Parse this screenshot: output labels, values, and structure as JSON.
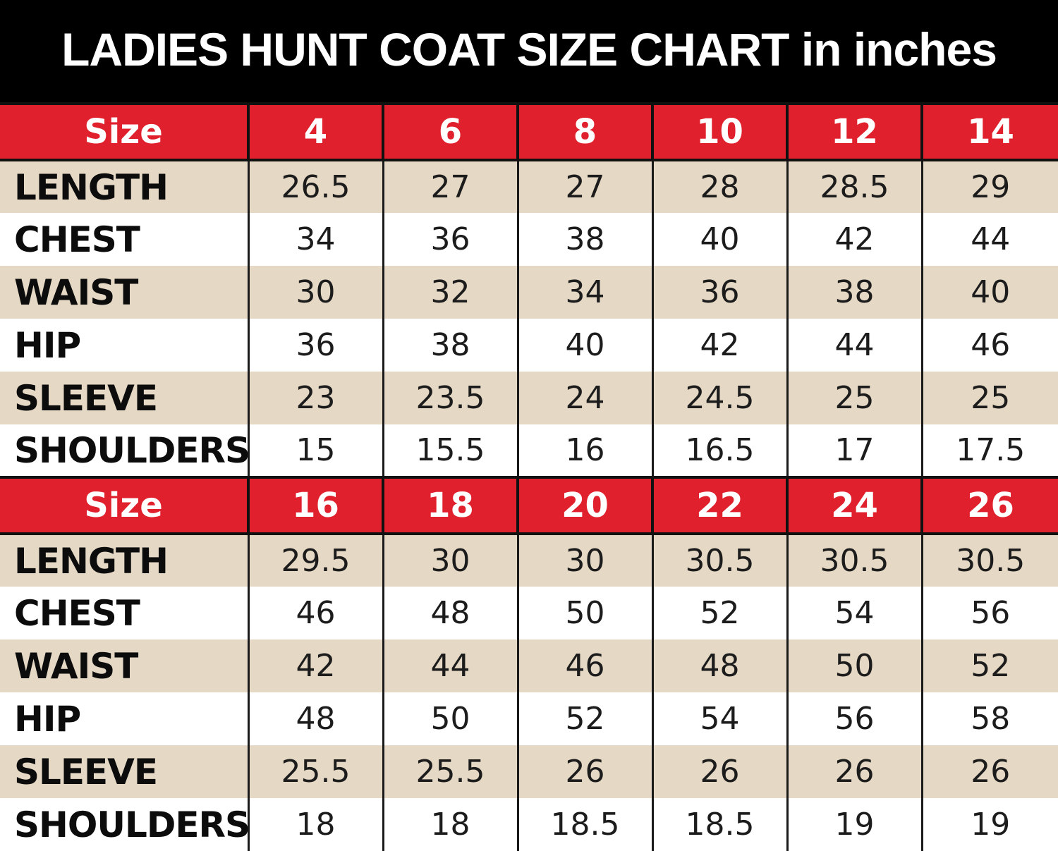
{
  "title": "LADIES HUNT COAT SIZE CHART in inches",
  "colors": {
    "header_background": "#000000",
    "size_row_background": "#e0202c",
    "tan_row_background": "#e5d8c4",
    "white_row_background": "#ffffff"
  },
  "table": {
    "size_label": "Size",
    "blocks": [
      {
        "sizes": [
          "4",
          "6",
          "8",
          "10",
          "12",
          "14"
        ],
        "rows": [
          {
            "label": "LENGTH",
            "values": [
              "26.5",
              "27",
              "27",
              "28",
              "28.5",
              "29"
            ]
          },
          {
            "label": "CHEST",
            "values": [
              "34",
              "36",
              "38",
              "40",
              "42",
              "44"
            ]
          },
          {
            "label": "WAIST",
            "values": [
              "30",
              "32",
              "34",
              "36",
              "38",
              "40"
            ]
          },
          {
            "label": "HIP",
            "values": [
              "36",
              "38",
              "40",
              "42",
              "44",
              "46"
            ]
          },
          {
            "label": "SLEEVE",
            "values": [
              "23",
              "23.5",
              "24",
              "24.5",
              "25",
              "25"
            ]
          },
          {
            "label": "SHOULDERS",
            "values": [
              "15",
              "15.5",
              "16",
              "16.5",
              "17",
              "17.5"
            ]
          }
        ]
      },
      {
        "sizes": [
          "16",
          "18",
          "20",
          "22",
          "24",
          "26"
        ],
        "rows": [
          {
            "label": "LENGTH",
            "values": [
              "29.5",
              "30",
              "30",
              "30.5",
              "30.5",
              "30.5"
            ]
          },
          {
            "label": "CHEST",
            "values": [
              "46",
              "48",
              "50",
              "52",
              "54",
              "56"
            ]
          },
          {
            "label": "WAIST",
            "values": [
              "42",
              "44",
              "46",
              "48",
              "50",
              "52"
            ]
          },
          {
            "label": "HIP",
            "values": [
              "48",
              "50",
              "52",
              "54",
              "56",
              "58"
            ]
          },
          {
            "label": "SLEEVE",
            "values": [
              "25.5",
              "25.5",
              "26",
              "26",
              "26",
              "26"
            ]
          },
          {
            "label": "SHOULDERS",
            "values": [
              "18",
              "18",
              "18.5",
              "18.5",
              "19",
              "19"
            ]
          }
        ]
      }
    ]
  }
}
